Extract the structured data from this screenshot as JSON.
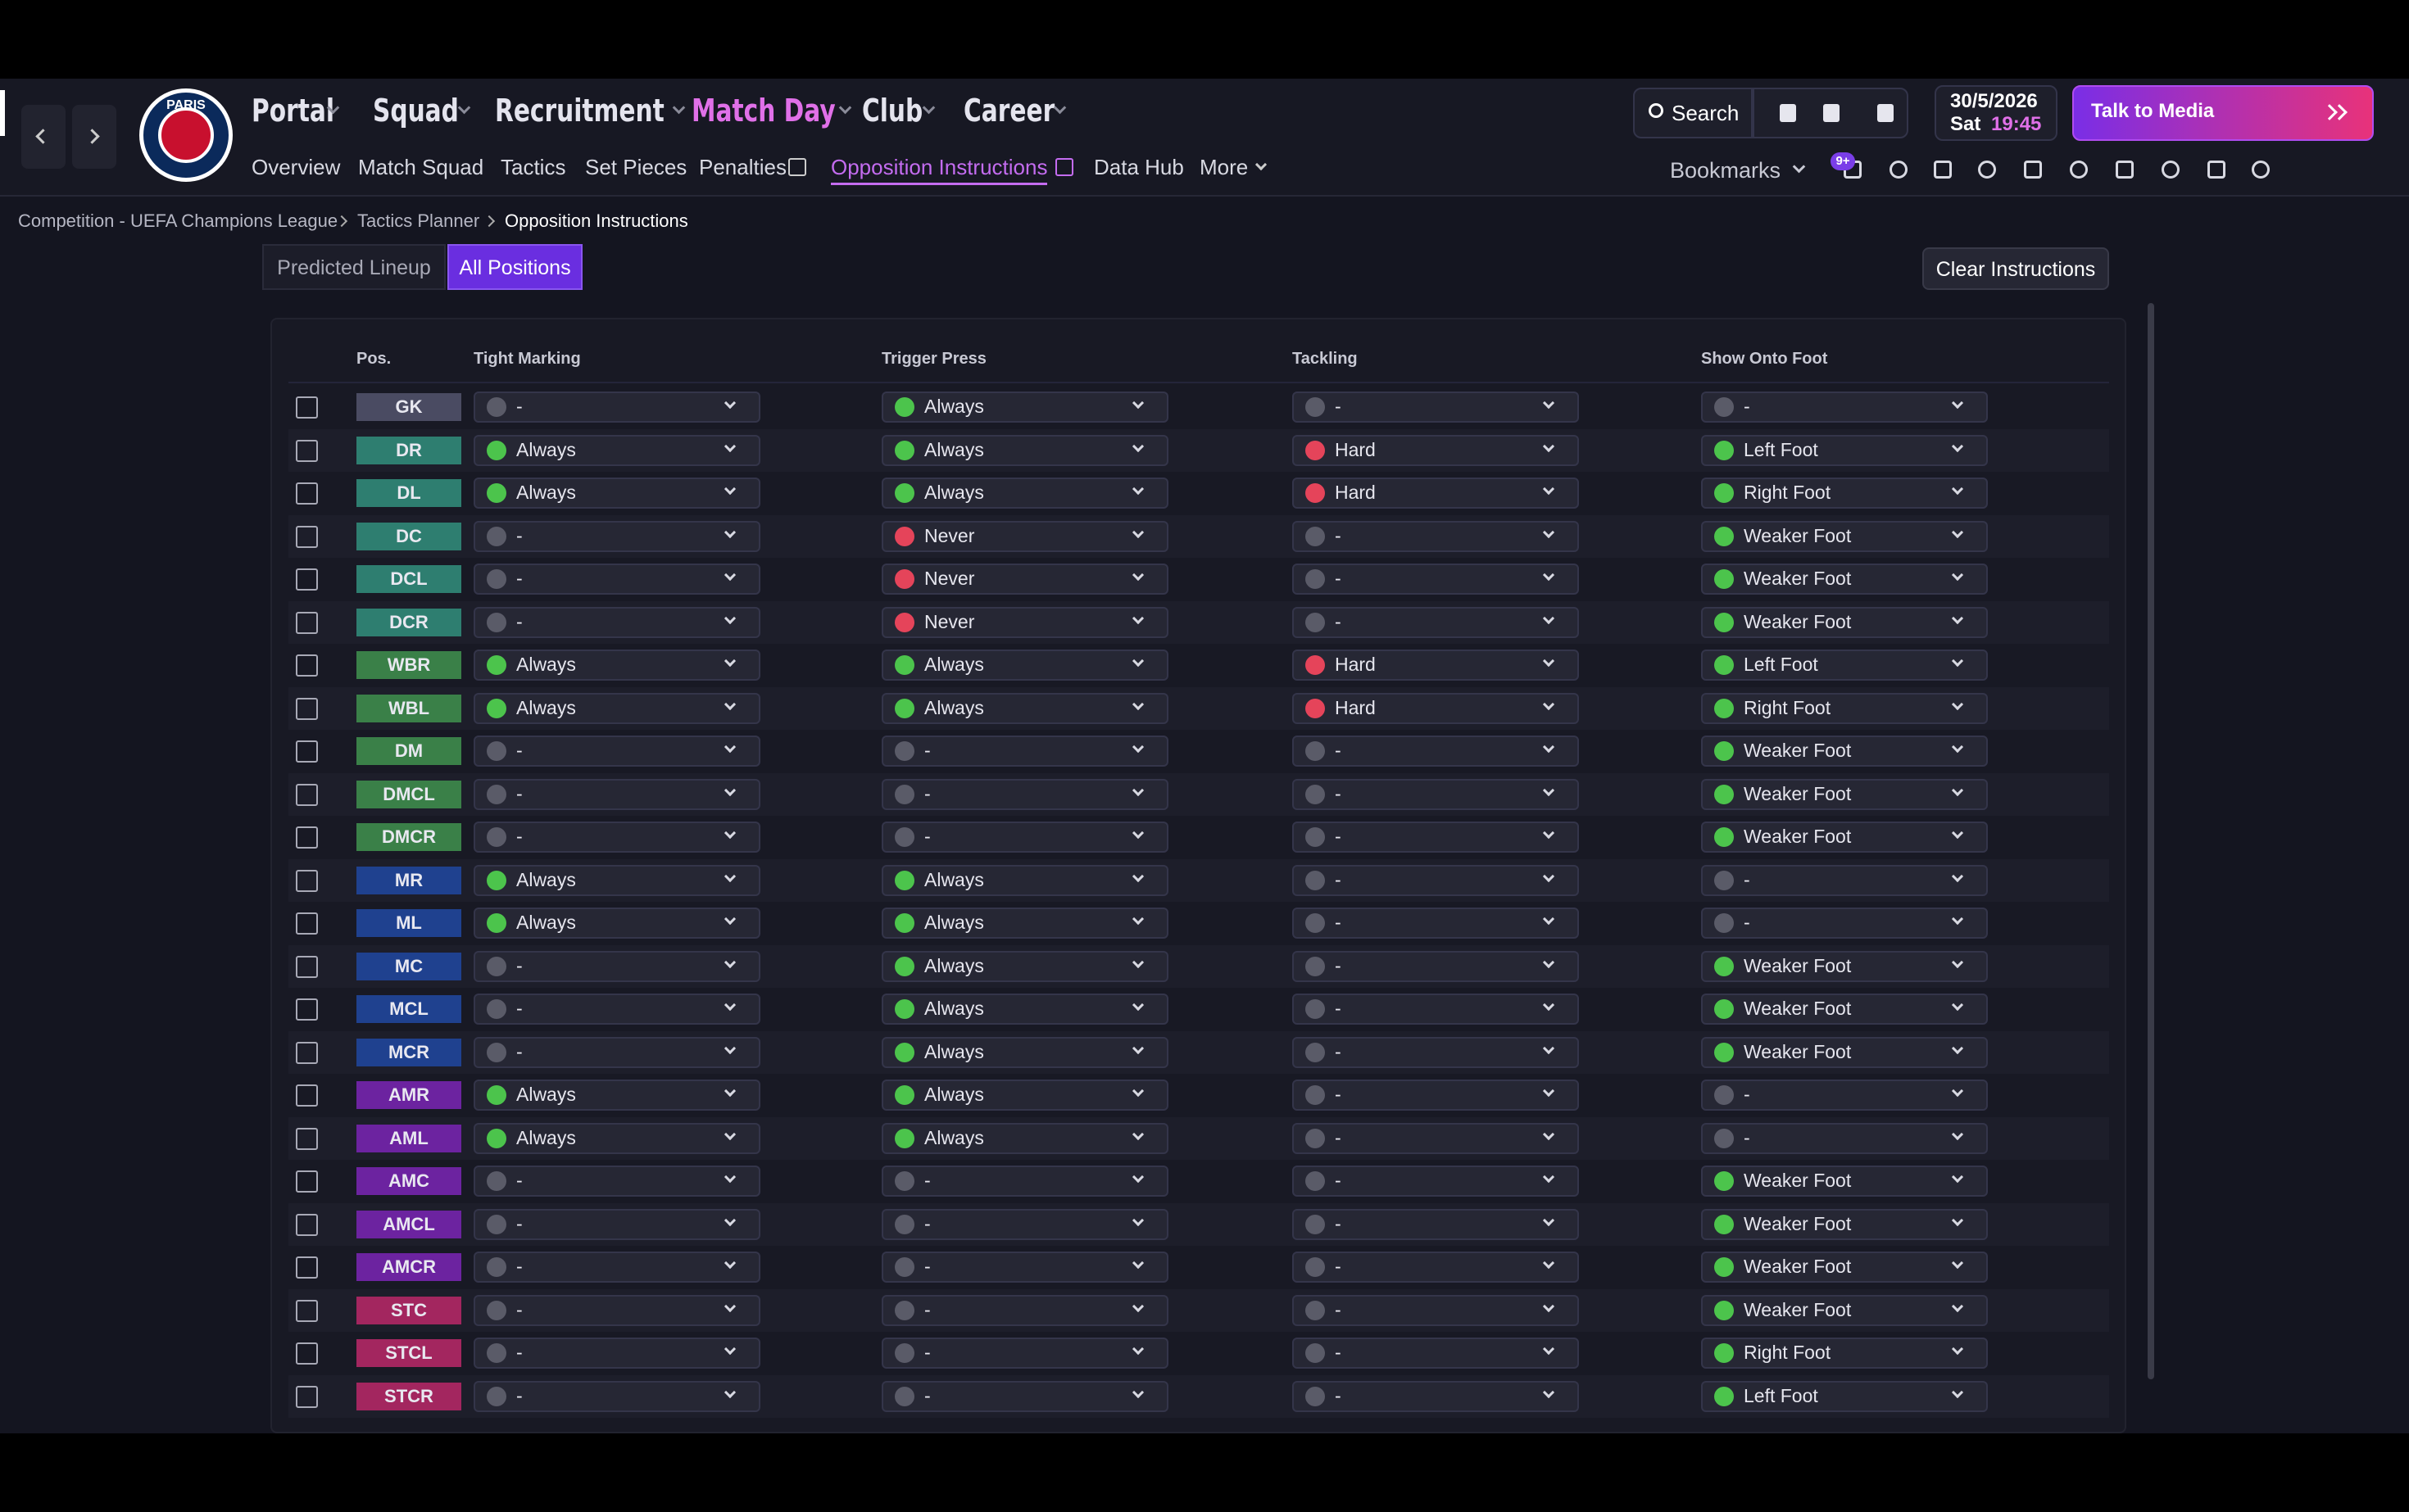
{
  "nav": {
    "logo": "PARIS",
    "main": [
      "Portal",
      "Squad",
      "Recruitment",
      "Match Day",
      "Club",
      "Career"
    ],
    "active_main": "Match Day",
    "sub": [
      "Overview",
      "Match Squad",
      "Tactics",
      "Set Pieces",
      "Penalties",
      "Opposition Instructions",
      "Data Hub",
      "More"
    ],
    "active_sub": "Opposition Instructions",
    "search": "Search",
    "date": "30/5/2026",
    "day": "Sat",
    "time": "19:45",
    "cta": "Talk to Media",
    "bookmarks": "Bookmarks",
    "badge": "9+"
  },
  "breadcrumb": [
    "Competition - UEFA Champions League",
    "Tactics Planner",
    "Opposition Instructions"
  ],
  "tabs": [
    "Predicted Lineup",
    "All Positions"
  ],
  "active_tab": "All Positions",
  "clear_button": "Clear Instructions",
  "table": {
    "headers": [
      "Pos.",
      "Tight Marking",
      "Trigger Press",
      "Tackling",
      "Show Onto Foot"
    ],
    "rows": [
      [
        "GK",
        "-",
        "Always",
        "-",
        "-"
      ],
      [
        "DR",
        "Always",
        "Always",
        "Hard",
        "Left Foot"
      ],
      [
        "DL",
        "Always",
        "Always",
        "Hard",
        "Right Foot"
      ],
      [
        "DC",
        "-",
        "Never",
        "-",
        "Weaker Foot"
      ],
      [
        "DCL",
        "-",
        "Never",
        "-",
        "Weaker Foot"
      ],
      [
        "DCR",
        "-",
        "Never",
        "-",
        "Weaker Foot"
      ],
      [
        "WBR",
        "Always",
        "Always",
        "Hard",
        "Left Foot"
      ],
      [
        "WBL",
        "Always",
        "Always",
        "Hard",
        "Right Foot"
      ],
      [
        "DM",
        "-",
        "-",
        "-",
        "Weaker Foot"
      ],
      [
        "DMCL",
        "-",
        "-",
        "-",
        "Weaker Foot"
      ],
      [
        "DMCR",
        "-",
        "-",
        "-",
        "Weaker Foot"
      ],
      [
        "MR",
        "Always",
        "Always",
        "-",
        "-"
      ],
      [
        "ML",
        "Always",
        "Always",
        "-",
        "-"
      ],
      [
        "MC",
        "-",
        "Always",
        "-",
        "Weaker Foot"
      ],
      [
        "MCL",
        "-",
        "Always",
        "-",
        "Weaker Foot"
      ],
      [
        "MCR",
        "-",
        "Always",
        "-",
        "Weaker Foot"
      ],
      [
        "AMR",
        "Always",
        "Always",
        "-",
        "-"
      ],
      [
        "AML",
        "Always",
        "Always",
        "-",
        "-"
      ],
      [
        "AMC",
        "-",
        "-",
        "-",
        "Weaker Foot"
      ],
      [
        "AMCL",
        "-",
        "-",
        "-",
        "Weaker Foot"
      ],
      [
        "AMCR",
        "-",
        "-",
        "-",
        "Weaker Foot"
      ],
      [
        "STC",
        "-",
        "-",
        "-",
        "Weaker Foot"
      ],
      [
        "STCL",
        "-",
        "-",
        "-",
        "Right Foot"
      ],
      [
        "STCR",
        "-",
        "-",
        "-",
        "Left Foot"
      ]
    ]
  }
}
